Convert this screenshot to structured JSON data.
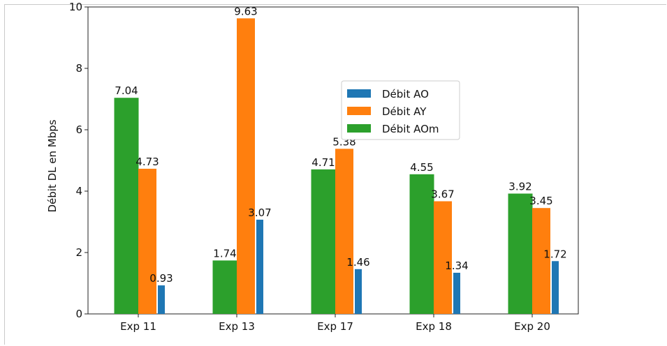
{
  "chart_data": {
    "type": "bar",
    "title": "",
    "xlabel": "",
    "ylabel": "Débit DL en Mbps",
    "ylim": [
      0,
      10
    ],
    "yticks": [
      "0",
      "2",
      "4",
      "6",
      "8",
      "10"
    ],
    "categories": [
      "Exp 11",
      "Exp 13",
      "Exp 17",
      "Exp 18",
      "Exp 20"
    ],
    "series": [
      {
        "name": "Débit AOm",
        "color": "#2ca02c",
        "values": [
          7.04,
          1.74,
          4.71,
          4.55,
          3.92
        ],
        "labels": [
          "7.04",
          "1.74",
          "4.71",
          "4.55",
          "3.92"
        ]
      },
      {
        "name": "Débit AY",
        "color": "#ff7f0e",
        "values": [
          4.73,
          9.63,
          5.38,
          3.67,
          3.45
        ],
        "labels": [
          "4.73",
          "9.63",
          "5.38",
          "3.67",
          "3.45"
        ]
      },
      {
        "name": "Débit AO",
        "color": "#1f77b4",
        "values": [
          0.93,
          3.07,
          1.46,
          1.34,
          1.72
        ],
        "labels": [
          "0.93",
          "3.07",
          "1.46",
          "1.34",
          "1.72"
        ]
      }
    ],
    "legend": {
      "position": "center-right",
      "entries": [
        {
          "name": "Débit AO",
          "color": "#1f77b4"
        },
        {
          "name": "Débit AY",
          "color": "#ff7f0e"
        },
        {
          "name": "Débit AOm",
          "color": "#2ca02c"
        }
      ]
    },
    "grid": false
  }
}
